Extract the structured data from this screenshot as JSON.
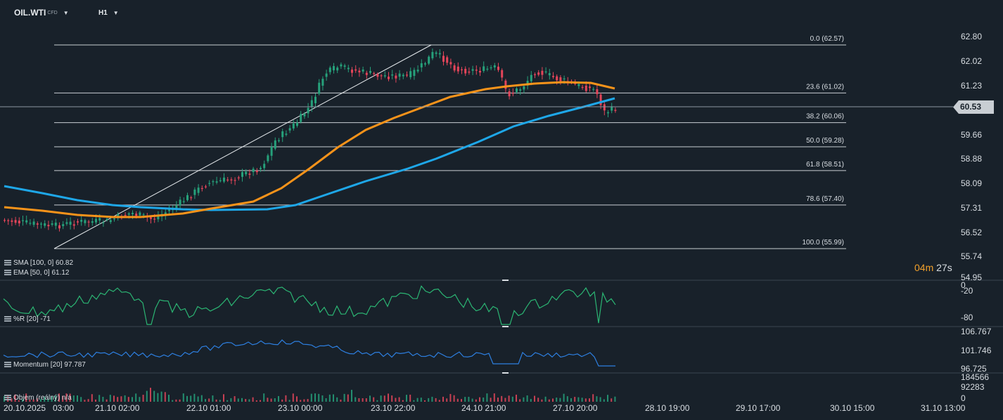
{
  "toolbar": {
    "symbol": "OIL.WTI",
    "symbol_type": "CFD",
    "timeframe": "H1"
  },
  "price_axis": [
    "62.80",
    "62.02",
    "61.23",
    "60.53",
    "59.66",
    "58.88",
    "58.09",
    "57.31",
    "56.52",
    "55.74",
    "54.95"
  ],
  "current_price": "60.53",
  "fib_levels": [
    {
      "label": "0.0 (62.57)",
      "price": 62.57
    },
    {
      "label": "23.6 (61.02)",
      "price": 61.02
    },
    {
      "label": "38.2 (60.06)",
      "price": 60.06
    },
    {
      "label": "50.0 (59.28)",
      "price": 59.28
    },
    {
      "label": "61.8 (58.51)",
      "price": 58.51
    },
    {
      "label": "78.6 (57.40)",
      "price": 57.4
    },
    {
      "label": "100.0 (55.99)",
      "price": 55.99
    }
  ],
  "indicators": {
    "sma": "SMA [100, 0] 60.82",
    "ema": "EMA [50, 0] 61.12",
    "wr": "%R [20] -71",
    "momentum": "Momentum [20] 97.787",
    "volume": "Objem (reálný) n/a"
  },
  "wr_axis": [
    "0",
    "-20",
    "-80"
  ],
  "mom_axis": [
    "106.767",
    "101.746",
    "96.725"
  ],
  "vol_axis": [
    "184566",
    "92283",
    "0"
  ],
  "timer": {
    "minutes": "04m",
    "seconds": "27s"
  },
  "time_axis": [
    "20.10.2025",
    "03:00",
    "21.10 02:00",
    "22.10 01:00",
    "23.10 00:00",
    "23.10 22:00",
    "24.10 21:00",
    "27.10 20:00",
    "28.10 19:00",
    "29.10 17:00",
    "30.10 15:00",
    "31.10 13:00"
  ],
  "colors": {
    "up": "#26a17b",
    "down": "#e5455a",
    "sma": "#1ea7e8",
    "ema": "#f7931a",
    "wr": "#2bb573",
    "momentum": "#2d7fe0",
    "accent": "#f3a12b"
  }
}
